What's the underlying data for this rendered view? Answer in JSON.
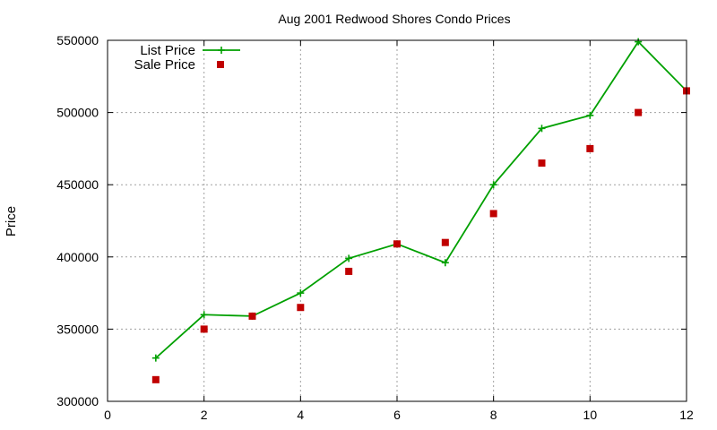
{
  "chart_data": {
    "type": "line",
    "title": "Aug 2001 Redwood Shores Condo Prices",
    "xlabel": "",
    "ylabel": "Price",
    "xlim": [
      0,
      12
    ],
    "ylim": [
      300000,
      550000
    ],
    "xticks": [
      0,
      2,
      4,
      6,
      8,
      10,
      12
    ],
    "yticks": [
      300000,
      350000,
      400000,
      450000,
      500000,
      550000
    ],
    "grid": true,
    "legend_position": "top-left",
    "x": [
      1,
      2,
      3,
      4,
      5,
      6,
      7,
      8,
      9,
      10,
      11,
      12
    ],
    "series": [
      {
        "name": "List Price",
        "style": "lines-points",
        "marker": "plus",
        "color": "#00a000",
        "values": [
          330000,
          360000,
          359000,
          375000,
          399000,
          409000,
          396000,
          450000,
          489000,
          498000,
          549000,
          515000
        ]
      },
      {
        "name": "Sale Price",
        "style": "points",
        "marker": "square",
        "color": "#c00000",
        "values": [
          315000,
          350000,
          359000,
          365000,
          390000,
          409000,
          410000,
          430000,
          465000,
          475000,
          500000,
          515000
        ]
      }
    ]
  }
}
